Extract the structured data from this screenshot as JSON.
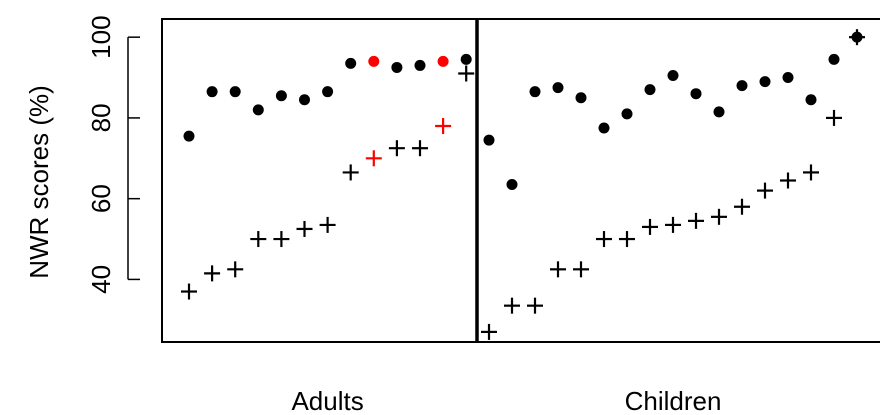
{
  "chart_data": {
    "type": "scatter",
    "title": "",
    "xlabel": "",
    "ylabel": "NWR scores (%)",
    "ylim": [
      24.5,
      104.5
    ],
    "yticks": [
      40,
      60,
      80,
      100
    ],
    "grid": false,
    "legend": "none",
    "divider_between_groups": true,
    "groups": [
      {
        "label": "Adults",
        "items": [
          {
            "dot": 75.5,
            "plus": 37,
            "highlight": false
          },
          {
            "dot": 86.5,
            "plus": 41.5,
            "highlight": false
          },
          {
            "dot": 86.5,
            "plus": 42.5,
            "highlight": false
          },
          {
            "dot": 82,
            "plus": 50,
            "highlight": false
          },
          {
            "dot": 85.5,
            "plus": 50,
            "highlight": false
          },
          {
            "dot": 84.5,
            "plus": 52.5,
            "highlight": false
          },
          {
            "dot": 86.5,
            "plus": 53.5,
            "highlight": false
          },
          {
            "dot": 93.5,
            "plus": 66.5,
            "highlight": false
          },
          {
            "dot": 94,
            "plus": 70,
            "highlight": true
          },
          {
            "dot": 92.5,
            "plus": 72.5,
            "highlight": false
          },
          {
            "dot": 93,
            "plus": 72.5,
            "highlight": false
          },
          {
            "dot": 94,
            "plus": 78,
            "highlight": true
          },
          {
            "dot": 94.5,
            "plus": 91,
            "highlight": false
          }
        ]
      },
      {
        "label": "Children",
        "items": [
          {
            "dot": 74.5,
            "plus": 27,
            "highlight": false
          },
          {
            "dot": 63.5,
            "plus": 33.5,
            "highlight": false
          },
          {
            "dot": 86.5,
            "plus": 33.5,
            "highlight": false
          },
          {
            "dot": 87.5,
            "plus": 42.5,
            "highlight": false
          },
          {
            "dot": 85,
            "plus": 42.5,
            "highlight": false
          },
          {
            "dot": 77.5,
            "plus": 50,
            "highlight": false
          },
          {
            "dot": 81,
            "plus": 50,
            "highlight": false
          },
          {
            "dot": 87,
            "plus": 53,
            "highlight": false
          },
          {
            "dot": 90.5,
            "plus": 53.5,
            "highlight": false
          },
          {
            "dot": 86,
            "plus": 54.5,
            "highlight": false
          },
          {
            "dot": 81.5,
            "plus": 55.5,
            "highlight": false
          },
          {
            "dot": 88,
            "plus": 58,
            "highlight": false
          },
          {
            "dot": 89,
            "plus": 62,
            "highlight": false
          },
          {
            "dot": 90,
            "plus": 64.5,
            "highlight": false
          },
          {
            "dot": 84.5,
            "plus": 66.5,
            "highlight": false
          },
          {
            "dot": 94.5,
            "plus": 80,
            "highlight": false
          },
          {
            "dot": 100,
            "plus": 100,
            "highlight": false
          }
        ]
      }
    ],
    "colors": {
      "default": "#000000",
      "highlight": "#ff0000"
    }
  }
}
